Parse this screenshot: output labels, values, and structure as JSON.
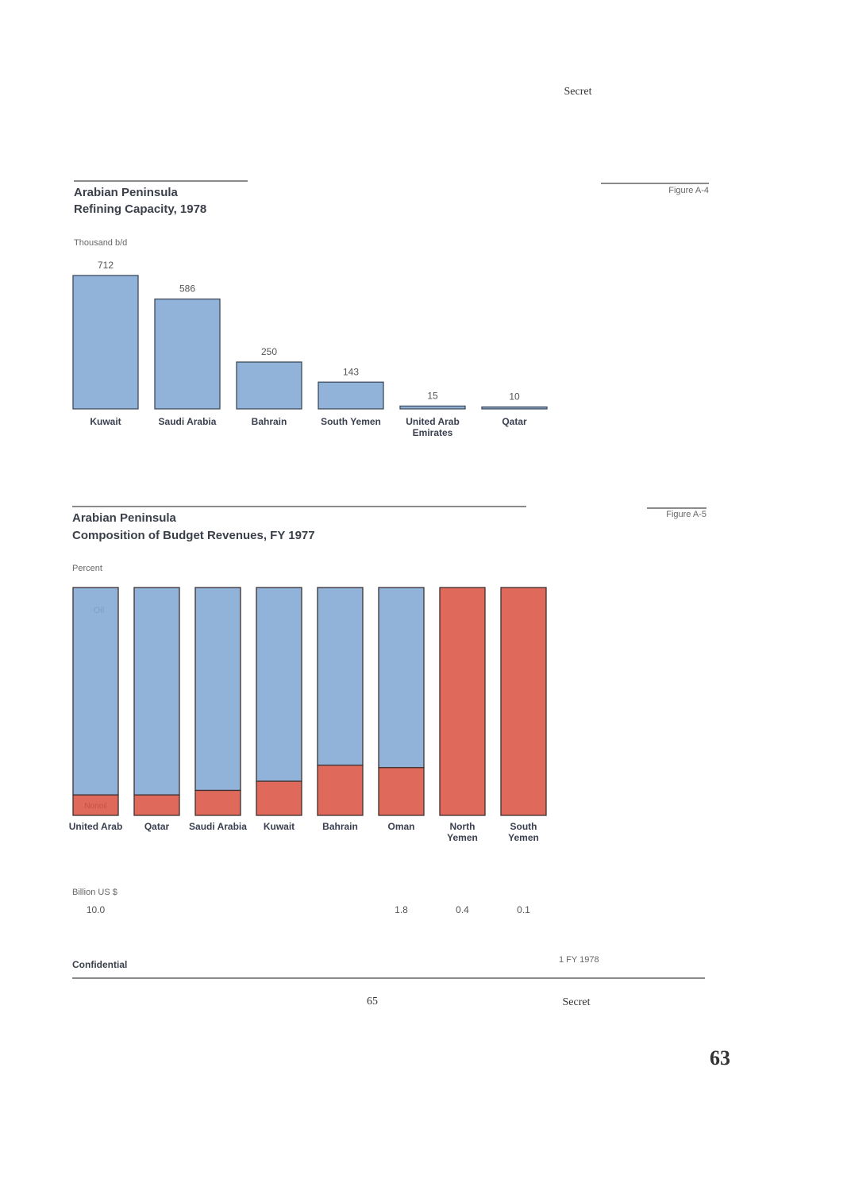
{
  "header": {
    "classification": "Secret"
  },
  "chart_data": [
    {
      "type": "bar",
      "figure": "Figure A-4",
      "title": "Arabian Peninsula",
      "subtitle": "Refining Capacity, 1978",
      "unit_label": "Thousand b/d",
      "categories": [
        "Kuwait",
        "Saudi Arabia",
        "Bahrain",
        "South Yemen",
        "United Arab Emirates",
        "Qatar"
      ],
      "values": [
        712,
        586,
        250,
        143,
        15,
        10
      ],
      "color": "#92b3d9"
    },
    {
      "type": "stacked_bar",
      "figure": "Figure A-5",
      "title": "Arabian Peninsula",
      "subtitle": "Composition of Budget Revenues, FY 1977",
      "unit_label": "Percent",
      "categories": [
        "United Arab",
        "Qatar",
        "Saudi Arabia",
        "Kuwait",
        "Bahrain",
        "Oman",
        "North Yemen",
        "South Yemen"
      ],
      "series": [
        {
          "name": "Oil",
          "color": "#92b3d9",
          "values": [
            91,
            91,
            89,
            85,
            78,
            79,
            0,
            0
          ]
        },
        {
          "name": "Nonoil",
          "color": "#df6a5b",
          "values": [
            9,
            9,
            11,
            15,
            22,
            21,
            100,
            100
          ]
        }
      ],
      "revenue": {
        "label": "Billion US $",
        "values": [
          10.0,
          null,
          null,
          null,
          null,
          1.8,
          0.4,
          0.1
        ],
        "value_labels": [
          "10.0",
          null,
          null,
          null,
          null,
          "1.8",
          "0.4",
          "0.1"
        ]
      },
      "footnote": "1 FY 1978"
    }
  ],
  "footer": {
    "classification_left": "Confidential",
    "page_number": "65",
    "classification_right": "Secret",
    "folio": "63"
  }
}
